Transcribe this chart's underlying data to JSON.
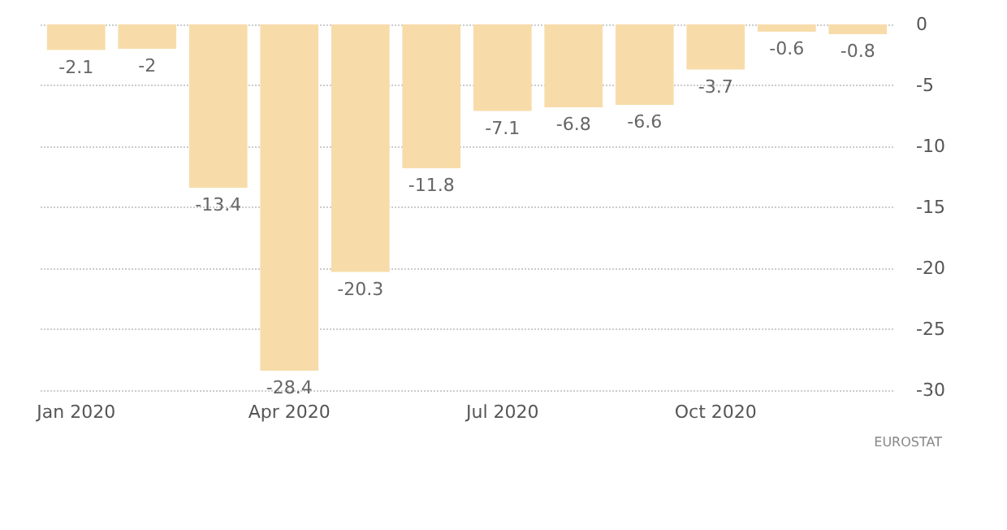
{
  "chart_data": {
    "type": "bar",
    "categories": [
      "Jan 2020",
      null,
      null,
      "Apr 2020",
      null,
      null,
      "Jul 2020",
      null,
      null,
      "Oct 2020",
      null,
      null
    ],
    "values": [
      -2.1,
      -2,
      -13.4,
      -28.4,
      -20.3,
      -11.8,
      -7.1,
      -6.8,
      -6.6,
      -3.7,
      -0.6,
      -0.8
    ],
    "color": "#f7dcaa",
    "ylim": [
      -30,
      0
    ],
    "yticks": [
      -30,
      -25,
      -20,
      -15,
      -10,
      -5,
      0
    ],
    "grid": "y",
    "data_labels": true,
    "annotations": [
      "EUROSTAT"
    ]
  }
}
